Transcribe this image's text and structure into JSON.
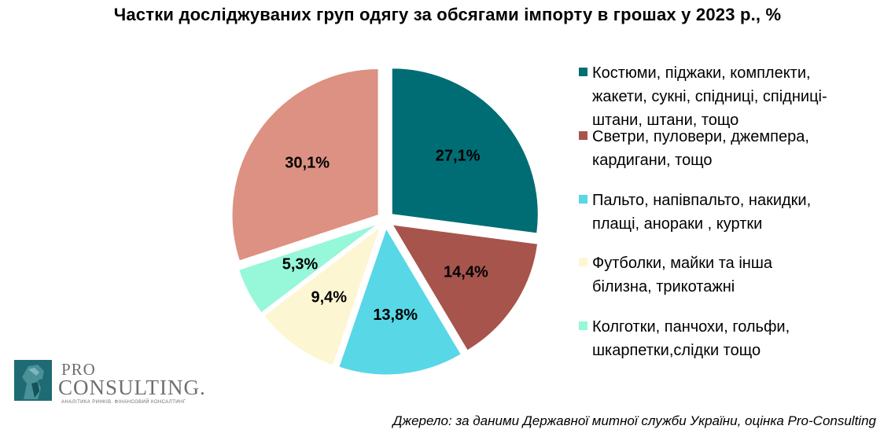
{
  "chart_data": {
    "type": "pie",
    "title": "Частки досліджуваних груп одягу за обсягами імпорту в грошах у 2023 р., %",
    "legend_position": "right",
    "slices": [
      {
        "label": "Костюми, піджаки, комплекти, жакети, сукні, спідниці, спідниці-штани, штани, тощо",
        "value": 27.1,
        "data_label": "27,1%",
        "color": "#006d75",
        "exploded": true
      },
      {
        "label": "Светри, пуловери, джемпера, кардигани, тощо",
        "value": 14.4,
        "data_label": "14,4%",
        "color": "#a7544d",
        "exploded": true
      },
      {
        "label": "Пальто, напівпальто, накидки, плащі, анораки , куртки",
        "value": 13.8,
        "data_label": "13,8%",
        "color": "#58d7e6",
        "exploded": true
      },
      {
        "label": "Футболки, майки та інша білизна, трикотажні",
        "value": 9.4,
        "data_label": "9,4%",
        "color": "#fdf6d2",
        "exploded": true
      },
      {
        "label": "Колготки, панчохи, гольфи, шкарпетки,слідки тощо",
        "value": 5.3,
        "data_label": "5,3%",
        "color": "#96f7d9",
        "exploded": true
      },
      {
        "label": "",
        "value": 30.1,
        "data_label": "30,1%",
        "color": "#dc9182",
        "exploded": true
      }
    ]
  },
  "legend": [
    {
      "lines": "Костюми, піджаки, комплекти,\nжакети, сукні, спідниці, спідниці-\nштани, штани, тощо",
      "color": "#006d75"
    },
    {
      "lines": "Светри, пуловери, джемпера,\nкардигани, тощо",
      "color": "#a7544d"
    },
    {
      "lines": "Пальто, напівпальто, накидки,\nплащі, анораки , куртки",
      "color": "#58d7e6"
    },
    {
      "lines": "Футболки, майки та інша\nбілизна, трикотажні",
      "color": "#fdf6d2"
    },
    {
      "lines": "Колготки, панчохи, гольфи,\nшкарпетки,слідки тощо",
      "color": "#96f7d9"
    }
  ],
  "logo": {
    "pro": "PRO",
    "consulting": "CONSULTING.",
    "tagline": "АНАЛІТИКА РИНКІВ. ФІНАНСОВИЙ КОНСАЛТИНГ"
  },
  "source": "Джерело: за даними Державної митної служби України, оцінка Pro-Consulting"
}
